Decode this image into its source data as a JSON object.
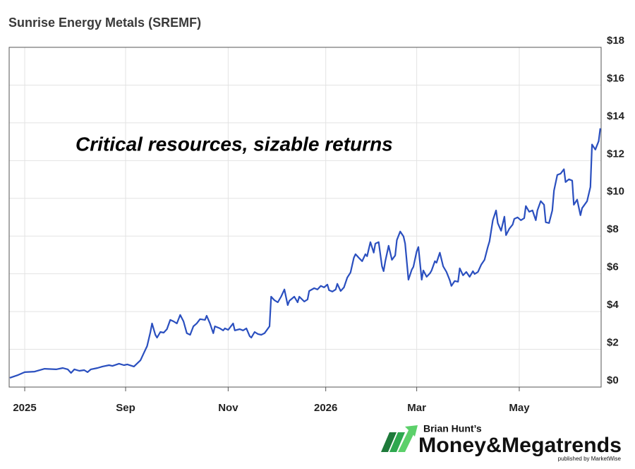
{
  "chart_data": {
    "type": "line",
    "title": "Sunrise Energy Metals (SREMF)",
    "annotation": "Critical resources, sizable returns",
    "x": [
      -9,
      -4,
      0,
      6,
      12,
      19,
      23,
      26,
      28,
      30,
      33,
      36,
      38,
      40,
      44,
      47,
      51,
      53,
      57,
      60,
      62,
      66,
      70,
      72,
      74,
      76,
      77,
      79,
      80,
      82,
      84,
      86,
      88,
      90,
      92,
      94,
      96,
      98,
      100,
      102,
      104,
      106,
      109,
      110,
      112,
      114,
      115,
      118,
      120,
      121,
      123,
      126,
      127,
      130,
      132,
      134,
      136,
      137,
      139,
      141,
      143,
      145,
      148,
      149,
      151,
      153,
      155,
      157,
      159,
      160,
      163,
      165,
      166,
      169,
      171,
      172,
      175,
      177,
      179,
      181,
      183,
      184,
      186,
      188,
      189,
      191,
      193,
      195,
      197,
      199,
      200,
      202,
      204,
      206,
      207,
      209,
      211,
      212,
      214,
      216,
      217,
      218,
      220,
      222,
      224,
      225,
      227,
      229,
      230,
      232,
      234,
      235,
      237,
      238,
      240,
      241,
      243,
      245,
      246,
      248,
      249,
      251,
      253,
      255,
      257,
      258,
      260,
      262,
      263,
      265,
      267,
      269,
      271,
      272,
      274,
      276,
      278,
      280,
      281,
      283,
      285,
      286,
      288,
      290,
      291,
      293,
      295,
      296,
      298,
      300,
      302,
      303,
      305,
      307,
      309,
      310,
      312,
      314,
      315,
      317,
      319,
      320,
      322,
      324,
      326,
      327,
      329,
      331,
      332,
      334,
      336,
      337,
      340,
      342,
      343,
      345,
      347,
      348
    ],
    "series": [
      {
        "name": "SREMF",
        "color": "#2a4fbf",
        "values": [
          0.49,
          0.64,
          0.79,
          0.82,
          0.97,
          0.94,
          1.01,
          0.94,
          0.75,
          0.94,
          0.86,
          0.9,
          0.79,
          0.94,
          1.01,
          1.09,
          1.16,
          1.12,
          1.24,
          1.16,
          1.2,
          1.09,
          1.42,
          1.8,
          2.17,
          2.92,
          3.37,
          2.77,
          2.62,
          2.92,
          2.88,
          3.07,
          3.56,
          3.48,
          3.37,
          3.82,
          3.48,
          2.85,
          2.77,
          3.22,
          3.37,
          3.6,
          3.56,
          3.78,
          3.37,
          2.85,
          3.22,
          3.11,
          3.0,
          3.11,
          3.03,
          3.37,
          3.0,
          3.07,
          3.0,
          3.11,
          2.7,
          2.62,
          2.92,
          2.81,
          2.77,
          2.85,
          3.22,
          4.79,
          4.6,
          4.49,
          4.79,
          5.17,
          4.34,
          4.57,
          4.79,
          4.49,
          4.79,
          4.53,
          4.64,
          5.09,
          5.24,
          5.17,
          5.36,
          5.28,
          5.43,
          5.13,
          5.06,
          5.17,
          5.47,
          5.09,
          5.28,
          5.8,
          6.07,
          6.85,
          7.04,
          6.85,
          6.67,
          7.04,
          6.93,
          7.68,
          7.12,
          7.6,
          7.68,
          6.4,
          6.14,
          6.67,
          7.49,
          6.74,
          6.97,
          7.79,
          8.24,
          7.98,
          7.6,
          5.69,
          6.22,
          6.37,
          7.19,
          7.42,
          5.69,
          6.18,
          5.84,
          6.03,
          6.18,
          6.67,
          6.59,
          7.12,
          6.4,
          6.1,
          5.66,
          5.36,
          5.62,
          5.58,
          6.29,
          5.92,
          6.1,
          5.84,
          6.14,
          5.99,
          6.1,
          6.48,
          6.74,
          7.42,
          7.72,
          8.84,
          9.36,
          8.69,
          8.28,
          9.03,
          8.05,
          8.39,
          8.61,
          8.91,
          8.99,
          8.84,
          8.95,
          9.59,
          9.29,
          9.36,
          8.84,
          9.36,
          9.85,
          9.66,
          8.73,
          8.69,
          9.36,
          10.41,
          11.24,
          11.31,
          11.54,
          10.86,
          11.01,
          10.94,
          9.66,
          9.93,
          9.1,
          9.48,
          9.85,
          10.6,
          12.85,
          12.58,
          13.03,
          13.71
        ]
      }
    ],
    "xlim": [
      -9.4,
      348.5
    ],
    "xticks": [
      {
        "value": 0,
        "label": "2025"
      },
      {
        "value": 61,
        "label": "Sep"
      },
      {
        "value": 123,
        "label": "Nov"
      },
      {
        "value": 182,
        "label": "2026"
      },
      {
        "value": 237,
        "label": "Mar"
      },
      {
        "value": 299,
        "label": "May"
      }
    ],
    "ylim": [
      0,
      18
    ],
    "yticks": [
      {
        "value": 0,
        "label": "$0"
      },
      {
        "value": 2,
        "label": "$2"
      },
      {
        "value": 4,
        "label": "$4"
      },
      {
        "value": 6,
        "label": "$6"
      },
      {
        "value": 8,
        "label": "$8"
      },
      {
        "value": 10,
        "label": "$10"
      },
      {
        "value": 12,
        "label": "$12"
      },
      {
        "value": 14,
        "label": "$14"
      },
      {
        "value": 16,
        "label": "$16"
      },
      {
        "value": 18,
        "label": "$18"
      }
    ],
    "grid": true
  },
  "logo": {
    "byline": "Brian Hunt’s",
    "name": "Money&Megatrends",
    "publisher": "published by MarketWise"
  }
}
